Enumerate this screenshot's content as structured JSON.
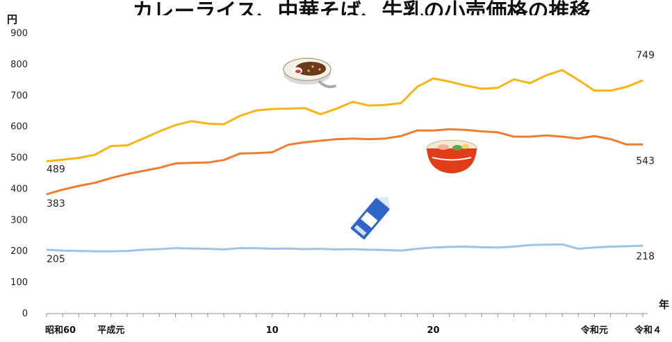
{
  "chart_data": {
    "type": "line",
    "title": "カレーライス、中華そば、牛乳の小売価格の推移",
    "ylabel": "円",
    "xlabel": "年",
    "ylim": [
      0,
      900
    ],
    "yticks": [
      0,
      100,
      200,
      300,
      400,
      500,
      600,
      700,
      800,
      900
    ],
    "x_tick_labels": [
      {
        "index": 0,
        "label": "昭和60"
      },
      {
        "index": 4,
        "label": "平成元"
      },
      {
        "index": 14,
        "label": "10"
      },
      {
        "index": 24,
        "label": "20"
      },
      {
        "index": 34,
        "label": "令和元"
      },
      {
        "index": 37,
        "label": "令和４"
      }
    ],
    "grid": false,
    "series": [
      {
        "icon": "curry-rice-icon",
        "color": "#f7b514",
        "start_label": "489",
        "end_label": "749",
        "values": [
          489,
          494,
          500,
          510,
          538,
          540,
          562,
          585,
          605,
          618,
          610,
          608,
          635,
          652,
          657,
          658,
          660,
          640,
          658,
          680,
          668,
          670,
          676,
          728,
          755,
          745,
          732,
          722,
          725,
          752,
          740,
          765,
          782,
          750,
          716,
          716,
          728,
          749
        ]
      },
      {
        "icon": "ramen-bowl-icon",
        "color": "#ed7d31",
        "start_label": "383",
        "end_label": "543",
        "values": [
          383,
          398,
          410,
          420,
          435,
          448,
          458,
          468,
          482,
          484,
          485,
          493,
          514,
          515,
          518,
          542,
          550,
          555,
          560,
          562,
          560,
          562,
          570,
          588,
          588,
          592,
          590,
          585,
          582,
          568,
          568,
          572,
          568,
          562,
          570,
          560,
          543,
          543
        ]
      },
      {
        "icon": "milk-carton-icon",
        "color": "#9dc3e6",
        "start_label": "205",
        "end_label": "218",
        "values": [
          205,
          202,
          201,
          200,
          200,
          201,
          205,
          207,
          210,
          209,
          208,
          206,
          210,
          210,
          208,
          209,
          207,
          208,
          206,
          207,
          205,
          204,
          202,
          208,
          212,
          214,
          215,
          213,
          212,
          215,
          220,
          221,
          222,
          208,
          212,
          215,
          216,
          218
        ]
      }
    ]
  }
}
